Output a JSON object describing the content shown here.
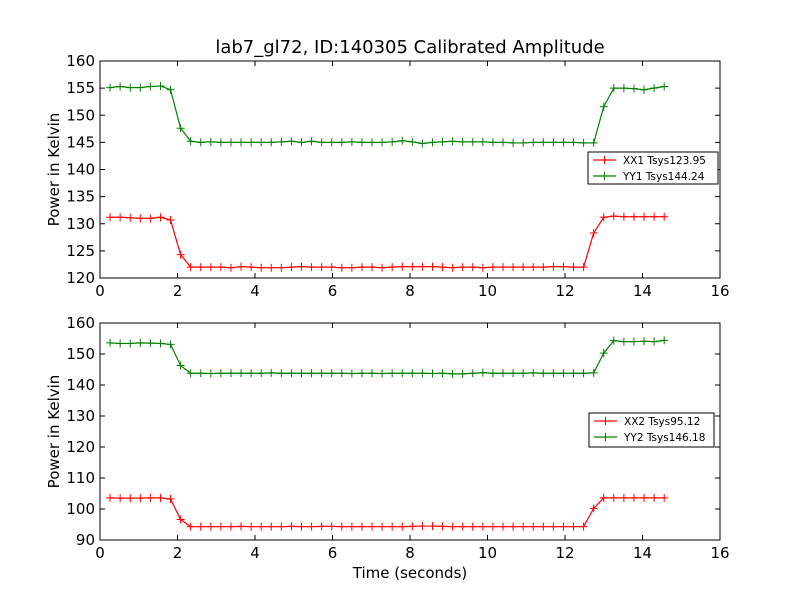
{
  "figure": {
    "title": "lab7_gl72, ID:140305 Calibrated Amplitude"
  },
  "chart_data": [
    {
      "type": "line",
      "title": "lab7_gl72, ID:140305 Calibrated Amplitude",
      "xlabel": "",
      "ylabel": "Power in Kelvin",
      "xlim": [
        0,
        16
      ],
      "ylim": [
        120,
        160
      ],
      "xticks": [
        "0",
        "2",
        "4",
        "6",
        "8",
        "10",
        "12",
        "14",
        "16"
      ],
      "yticks": [
        "120",
        "125",
        "130",
        "135",
        "140",
        "145",
        "150",
        "155",
        "160"
      ],
      "grid": false,
      "legend_position": "right",
      "x": [
        0.26,
        0.52,
        0.78,
        1.04,
        1.3,
        1.56,
        1.82,
        2.08,
        2.34,
        2.6,
        2.86,
        3.12,
        3.38,
        3.64,
        3.9,
        4.16,
        4.42,
        4.68,
        4.94,
        5.2,
        5.46,
        5.72,
        5.98,
        6.24,
        6.5,
        6.76,
        7.02,
        7.28,
        7.54,
        7.8,
        8.06,
        8.32,
        8.58,
        8.84,
        9.1,
        9.36,
        9.62,
        9.88,
        10.14,
        10.4,
        10.66,
        10.92,
        11.18,
        11.44,
        11.7,
        11.96,
        12.22,
        12.48,
        12.74,
        13.0,
        13.26,
        13.52,
        13.78,
        14.04,
        14.3,
        14.56
      ],
      "series": [
        {
          "name": "XX1 Tsys123.95",
          "color": "#ff0000",
          "values": [
            131.2,
            131.2,
            131.1,
            131.0,
            131.0,
            131.2,
            130.7,
            124.3,
            122.0,
            122.0,
            122.0,
            122.0,
            121.9,
            122.1,
            122.0,
            121.9,
            121.9,
            121.9,
            122.0,
            122.1,
            122.0,
            122.0,
            122.0,
            121.9,
            121.9,
            122.0,
            122.0,
            121.9,
            122.0,
            122.1,
            122.1,
            122.1,
            122.1,
            122.0,
            121.9,
            122.0,
            122.0,
            121.9,
            122.0,
            122.0,
            122.0,
            122.0,
            122.0,
            122.0,
            122.1,
            122.1,
            122.0,
            122.0,
            128.3,
            131.2,
            131.4,
            131.3,
            131.3,
            131.3,
            131.3,
            131.3
          ]
        },
        {
          "name": "YY1 Tsys144.24",
          "color": "#008000",
          "values": [
            155.1,
            155.3,
            155.1,
            155.1,
            155.3,
            155.4,
            154.7,
            147.6,
            145.2,
            145.0,
            145.1,
            145.0,
            145.0,
            145.0,
            145.0,
            145.0,
            145.0,
            145.1,
            145.2,
            145.0,
            145.2,
            145.0,
            145.0,
            145.0,
            145.1,
            145.0,
            145.0,
            145.0,
            145.1,
            145.3,
            145.1,
            144.8,
            145.0,
            145.1,
            145.2,
            145.1,
            145.1,
            145.1,
            145.0,
            145.0,
            144.9,
            144.9,
            145.0,
            145.0,
            145.0,
            145.0,
            145.0,
            144.9,
            144.9,
            151.6,
            155.0,
            155.0,
            154.9,
            154.7,
            155.0,
            155.3
          ]
        }
      ]
    },
    {
      "type": "line",
      "title": "",
      "xlabel": "Time (seconds)",
      "ylabel": "Power in Kelvin",
      "xlim": [
        0,
        16
      ],
      "ylim": [
        90,
        160
      ],
      "xticks": [
        "0",
        "2",
        "4",
        "6",
        "8",
        "10",
        "12",
        "14",
        "16"
      ],
      "yticks": [
        "90",
        "100",
        "110",
        "120",
        "130",
        "140",
        "150",
        "160"
      ],
      "grid": false,
      "legend_position": "right",
      "x": [
        0.26,
        0.52,
        0.78,
        1.04,
        1.3,
        1.56,
        1.82,
        2.08,
        2.34,
        2.6,
        2.86,
        3.12,
        3.38,
        3.64,
        3.9,
        4.16,
        4.42,
        4.68,
        4.94,
        5.2,
        5.46,
        5.72,
        5.98,
        6.24,
        6.5,
        6.76,
        7.02,
        7.28,
        7.54,
        7.8,
        8.06,
        8.32,
        8.58,
        8.84,
        9.1,
        9.36,
        9.62,
        9.88,
        10.14,
        10.4,
        10.66,
        10.92,
        11.18,
        11.44,
        11.7,
        11.96,
        12.22,
        12.48,
        12.74,
        13.0,
        13.26,
        13.52,
        13.78,
        14.04,
        14.3,
        14.56
      ],
      "series": [
        {
          "name": "XX2 Tsys95.12",
          "color": "#ff0000",
          "values": [
            103.6,
            103.5,
            103.5,
            103.5,
            103.6,
            103.6,
            103.2,
            96.6,
            94.3,
            94.3,
            94.3,
            94.3,
            94.3,
            94.4,
            94.3,
            94.3,
            94.3,
            94.3,
            94.4,
            94.3,
            94.3,
            94.4,
            94.4,
            94.3,
            94.3,
            94.3,
            94.3,
            94.3,
            94.3,
            94.3,
            94.4,
            94.5,
            94.5,
            94.4,
            94.3,
            94.3,
            94.3,
            94.3,
            94.3,
            94.3,
            94.3,
            94.3,
            94.3,
            94.3,
            94.3,
            94.3,
            94.3,
            94.3,
            100.2,
            103.6,
            103.6,
            103.6,
            103.6,
            103.6,
            103.6,
            103.6
          ]
        },
        {
          "name": "YY2 Tsys146.18",
          "color": "#008000",
          "values": [
            153.6,
            153.4,
            153.4,
            153.6,
            153.5,
            153.4,
            153.1,
            146.3,
            143.8,
            143.8,
            143.7,
            143.8,
            143.8,
            143.8,
            143.8,
            143.8,
            143.9,
            143.8,
            143.8,
            143.8,
            143.8,
            143.8,
            143.8,
            143.8,
            143.7,
            143.8,
            143.8,
            143.7,
            143.8,
            143.8,
            143.8,
            143.8,
            143.7,
            143.8,
            143.6,
            143.6,
            143.8,
            144.0,
            143.8,
            143.8,
            143.8,
            143.8,
            143.9,
            143.8,
            143.8,
            143.8,
            143.8,
            143.8,
            143.9,
            150.3,
            154.3,
            154.0,
            154.0,
            154.1,
            154.0,
            154.4
          ]
        }
      ]
    }
  ]
}
